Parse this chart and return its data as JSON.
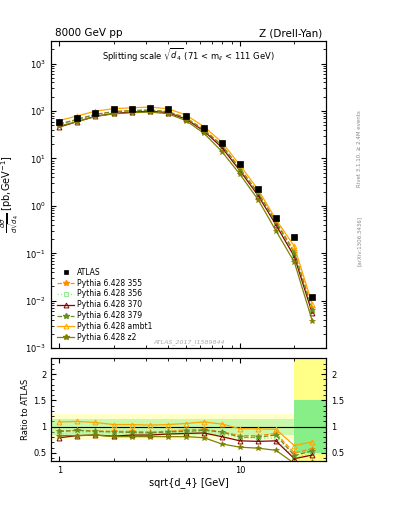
{
  "title_left": "8000 GeV pp",
  "title_right": "Z (Drell-Yan)",
  "panel_title": "Splitting scale $\\sqrt{d_4}$ (71 < m$_{ll}$ < 111 GeV)",
  "xlabel": "sqrt{d_4} [GeV]",
  "ylabel_main": "dσ/dsqrt(d_4) [pb,GeV⁻¹]",
  "ylabel_ratio": "Ratio to ATLAS",
  "watermark": "ATLAS_2017_I1589844",
  "right_label1": "[arXiv:1306.3436]",
  "right_label2": "Rivet 3.1.10, ≥ 2.4M events",
  "x_data": [
    1.0,
    1.26,
    1.58,
    2.0,
    2.51,
    3.16,
    3.98,
    5.01,
    6.31,
    7.94,
    10.0,
    12.6,
    15.8,
    20.0,
    25.1
  ],
  "atlas_y": [
    58,
    72,
    92,
    108,
    113,
    118,
    108,
    78,
    43,
    21,
    7.5,
    2.3,
    0.55,
    0.22,
    0.012
  ],
  "p355_y": [
    53,
    67,
    85,
    98,
    103,
    106,
    98,
    73,
    41,
    19,
    6.2,
    1.9,
    0.48,
    0.11,
    0.007
  ],
  "p356_y": [
    50,
    64,
    82,
    95,
    100,
    104,
    96,
    70,
    39,
    18,
    5.9,
    1.8,
    0.43,
    0.09,
    0.006
  ],
  "p370_y": [
    46,
    60,
    77,
    89,
    95,
    99,
    93,
    68,
    38,
    17,
    5.5,
    1.65,
    0.4,
    0.085,
    0.0055
  ],
  "p379_y": [
    53,
    67,
    84,
    97,
    101,
    104,
    97,
    71,
    40,
    19,
    6.0,
    1.85,
    0.46,
    0.1,
    0.0065
  ],
  "pambt1_y": [
    63,
    79,
    99,
    112,
    117,
    121,
    112,
    83,
    47,
    22,
    7.2,
    2.2,
    0.52,
    0.14,
    0.0085
  ],
  "pz2_y": [
    48,
    60,
    77,
    87,
    92,
    95,
    88,
    63,
    34,
    14,
    4.6,
    1.35,
    0.3,
    0.065,
    0.0038
  ],
  "ratio_p355": [
    0.91,
    0.93,
    0.92,
    0.91,
    0.91,
    0.9,
    0.91,
    0.94,
    0.95,
    0.9,
    0.83,
    0.83,
    0.87,
    0.5,
    0.58
  ],
  "ratio_p356": [
    0.86,
    0.89,
    0.89,
    0.88,
    0.88,
    0.88,
    0.89,
    0.9,
    0.91,
    0.86,
    0.79,
    0.78,
    0.78,
    0.41,
    0.5
  ],
  "ratio_p370": [
    0.79,
    0.83,
    0.84,
    0.82,
    0.84,
    0.84,
    0.86,
    0.87,
    0.88,
    0.81,
    0.73,
    0.72,
    0.73,
    0.39,
    0.46
  ],
  "ratio_p379": [
    0.91,
    0.93,
    0.91,
    0.9,
    0.89,
    0.88,
    0.9,
    0.91,
    0.93,
    0.9,
    0.8,
    0.8,
    0.84,
    0.45,
    0.54
  ],
  "ratio_pambt1": [
    1.09,
    1.1,
    1.08,
    1.04,
    1.04,
    1.03,
    1.04,
    1.06,
    1.09,
    1.05,
    0.96,
    0.96,
    0.95,
    0.64,
    0.71
  ],
  "ratio_pz2": [
    0.83,
    0.83,
    0.84,
    0.81,
    0.81,
    0.81,
    0.81,
    0.81,
    0.79,
    0.67,
    0.61,
    0.59,
    0.55,
    0.3,
    0.32
  ],
  "color_355": "#FF8C00",
  "color_356": "#90EE90",
  "color_370": "#8B0000",
  "color_379": "#6B8E23",
  "color_ambt1": "#FFA500",
  "color_z2": "#808000",
  "ylim_main": [
    0.001,
    3000.0
  ],
  "ylim_ratio": [
    0.35,
    2.3
  ],
  "yticks_ratio": [
    0.5,
    1.0,
    1.5,
    2.0
  ],
  "band_x_start": 20.0,
  "xmax": 30,
  "xmin": 0.9
}
